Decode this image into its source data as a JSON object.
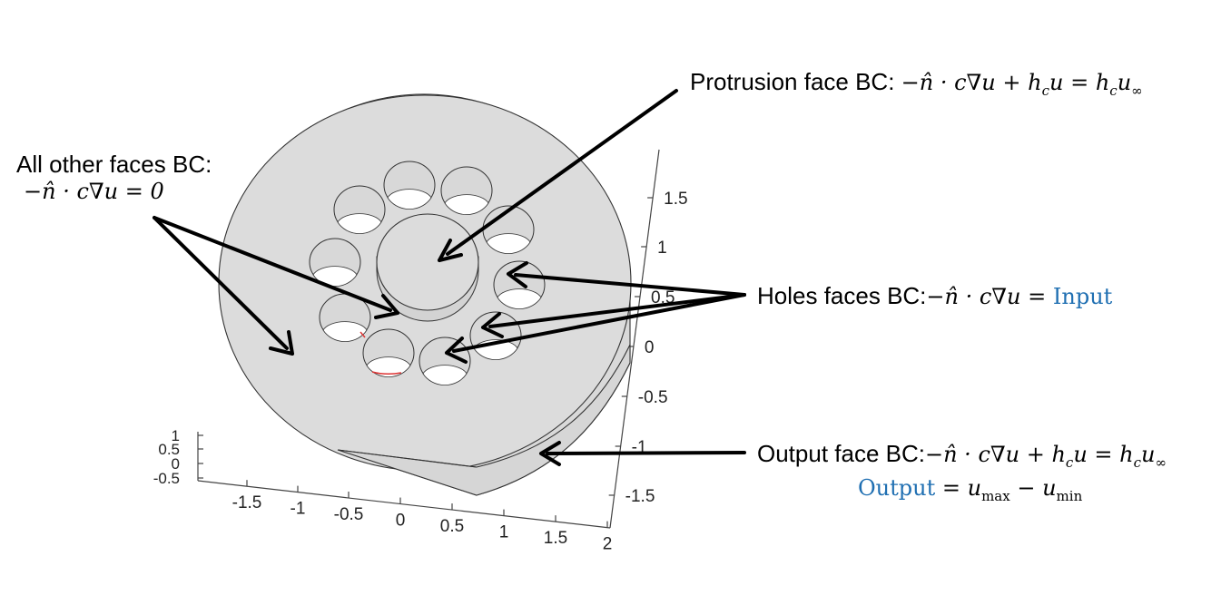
{
  "axes": {
    "right_ticks": [
      "1.5",
      "1",
      "0.5",
      "0",
      "-0.5",
      "-1",
      "-1.5"
    ],
    "bottom_ticks": [
      "-1.5",
      "-1",
      "-0.5",
      "0",
      "0.5",
      "1",
      "1.5",
      "2"
    ],
    "left_ticks": [
      "1",
      "0.5",
      "0",
      "-0.5"
    ]
  },
  "labels": {
    "protrusion_text": "Protrusion face BC: ",
    "protrusion_math": "−n̂ · c∇u + h",
    "protrusion_math2": "u = h",
    "protrusion_math3": "u",
    "protrusion_sub_c": "c",
    "protrusion_sub_inf": "∞",
    "other_text": "All other faces BC:",
    "other_math": "−n̂ · c∇u = 0",
    "holes_text": "Holes faces BC:",
    "holes_math": "−n̂ · c∇u = ",
    "holes_input": "Input",
    "output_text": "Output face BC:",
    "output_math": "−n̂ · c∇u + h",
    "output_math2": "u = h",
    "output_math3": "u",
    "output_sub_c": "c",
    "output_sub_inf": "∞",
    "output_word": "Output",
    "output_eq": " =  u",
    "output_sub_max": "max",
    "output_minus": " − u",
    "output_sub_min": "min"
  }
}
